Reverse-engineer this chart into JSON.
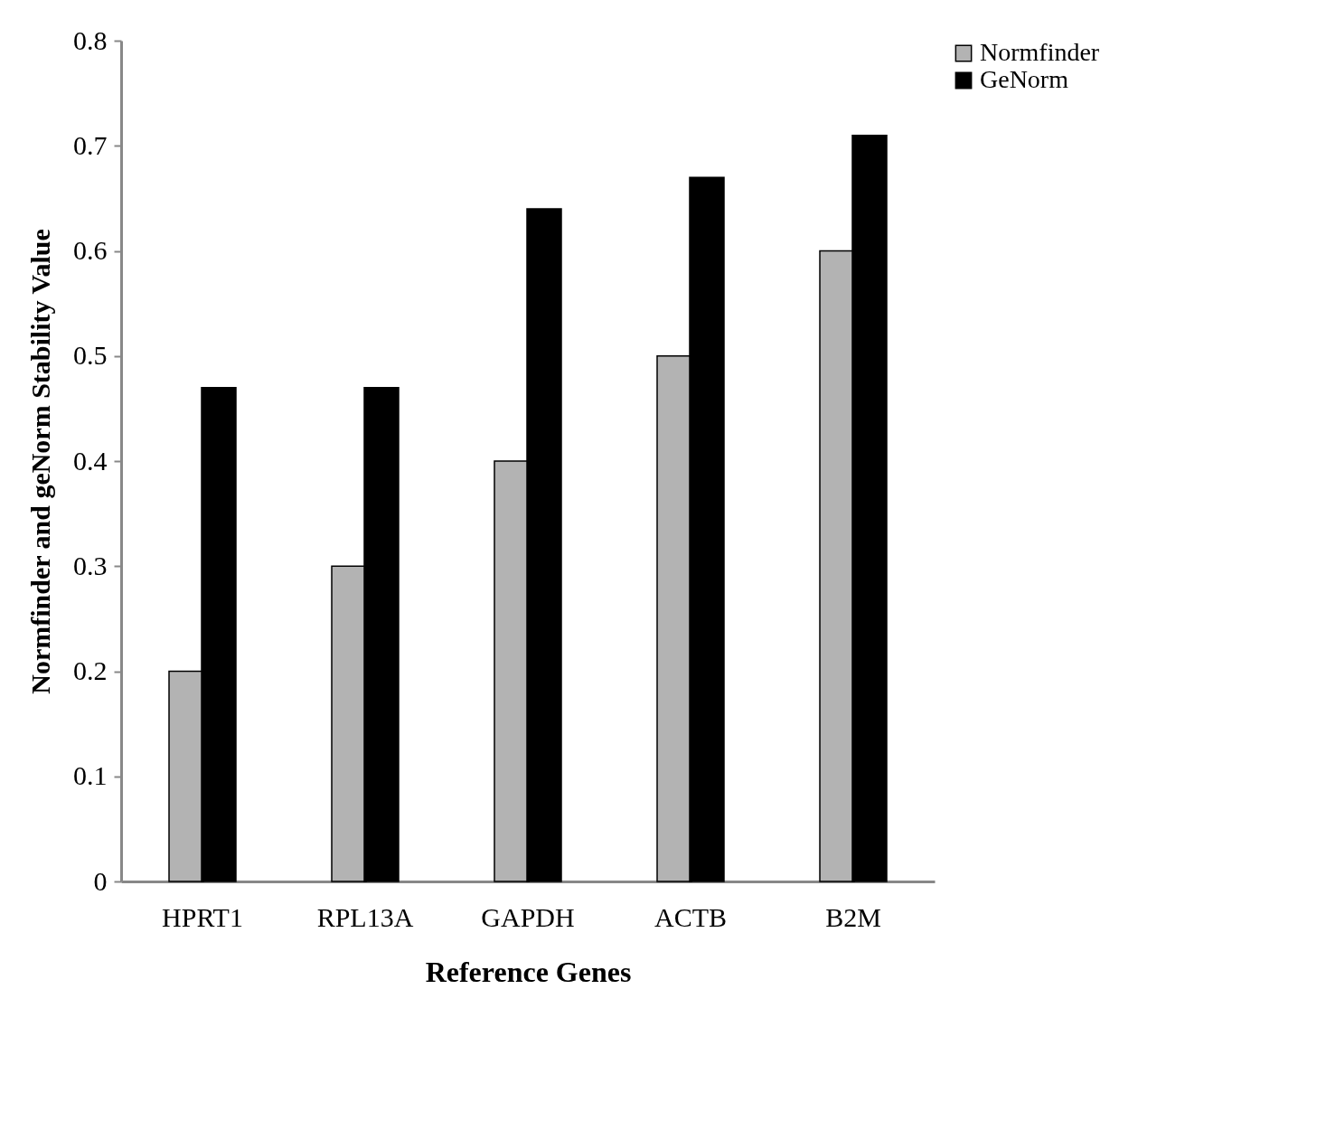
{
  "chart_data": {
    "type": "bar",
    "xlabel": "Reference Genes",
    "ylabel": "Normfinder and geNorm Stability Value",
    "categories": [
      "HPRT1",
      "RPL13A",
      "GAPDH",
      "ACTB",
      "B2M"
    ],
    "series": [
      {
        "name": "Normfinder",
        "color": "#b3b3b3",
        "values": [
          0.2,
          0.3,
          0.4,
          0.5,
          0.6
        ]
      },
      {
        "name": "GeNorm",
        "color": "#000000",
        "values": [
          0.47,
          0.47,
          0.64,
          0.67,
          0.71
        ]
      }
    ],
    "ylim": [
      0,
      0.8
    ],
    "yticks": [
      0,
      0.1,
      0.2,
      0.3,
      0.4,
      0.5,
      0.6,
      0.7,
      0.8
    ],
    "grid": false,
    "legend": "right"
  }
}
